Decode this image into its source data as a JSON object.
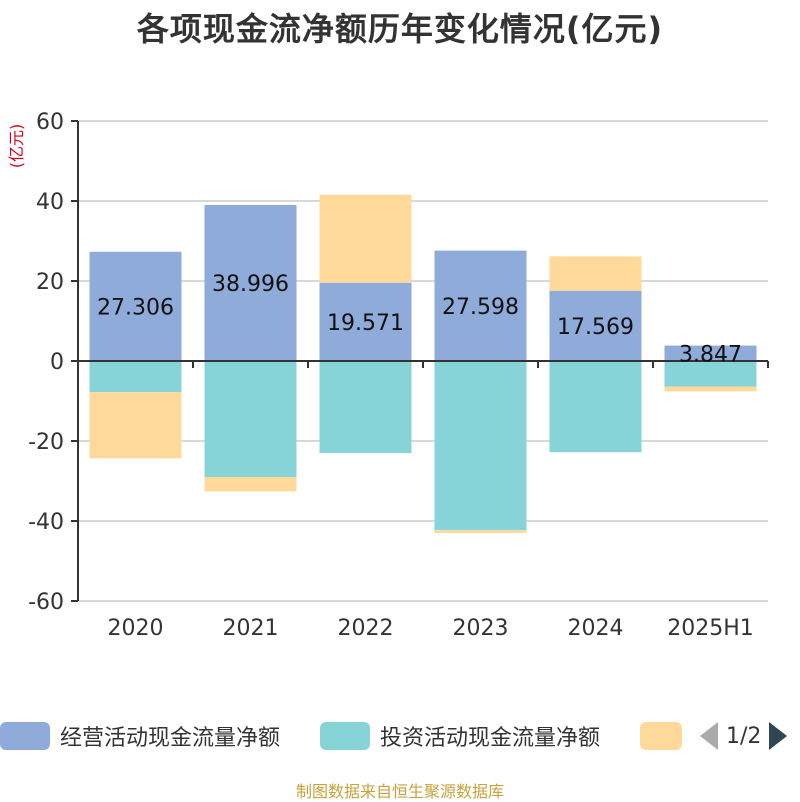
{
  "chart_data": {
    "type": "bar",
    "title": "各项现金流净额历年变化情况(亿元)",
    "ylabel": "(亿元)",
    "categories": [
      "2020",
      "2021",
      "2022",
      "2023",
      "2024",
      "2025H1"
    ],
    "ylim": [
      -60,
      60
    ],
    "yticks": [
      60,
      40,
      20,
      0,
      -20,
      -40,
      -60
    ],
    "stacked": true,
    "grid": true,
    "series": [
      {
        "name": "经营活动现金流量净额",
        "color": "#8eabd9",
        "values": [
          27.306,
          38.996,
          19.571,
          27.598,
          17.569,
          3.847
        ],
        "data_labels": [
          "27.306",
          "38.996",
          "19.571",
          "27.598",
          "17.569",
          "3.847"
        ]
      },
      {
        "name": "投资活动现金流量净额",
        "color": "#86d4d8",
        "values": [
          -7.8,
          -29.0,
          -23.0,
          -42.3,
          -22.8,
          -6.4
        ]
      },
      {
        "name": "",
        "color": "#ffd99a",
        "values": [
          -16.5,
          -3.6,
          22.0,
          -0.7,
          8.6,
          -1.2
        ]
      }
    ]
  },
  "legend": {
    "items": [
      {
        "label": "经营活动现金流量净额",
        "color": "#8eabd9"
      },
      {
        "label": "投资活动现金流量净额",
        "color": "#86d4d8"
      },
      {
        "label": "",
        "color": "#ffd99a"
      }
    ],
    "page_indicator": "1/2"
  },
  "footer": {
    "source": "制图数据来自恒生聚源数据库"
  }
}
